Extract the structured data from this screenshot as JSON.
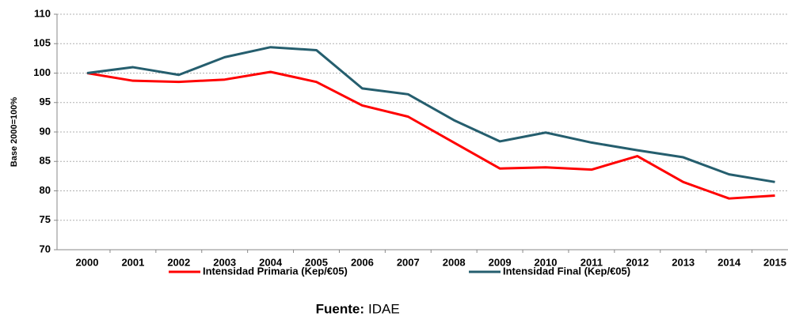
{
  "chart_data": {
    "type": "line",
    "y_label": "Base 2000=100%",
    "categories": [
      "2000",
      "2001",
      "2002",
      "2003",
      "2004",
      "2005",
      "2006",
      "2007",
      "2008",
      "2009",
      "2010",
      "2011",
      "2012",
      "2013",
      "2014",
      "2015"
    ],
    "series": [
      {
        "name": "Intensidad Primaria (Kep/€05)",
        "color": "#ff0000",
        "values": [
          100,
          98.7,
          98.5,
          98.9,
          100.2,
          98.5,
          94.5,
          92.6,
          88.2,
          83.8,
          84.0,
          83.6,
          85.9,
          81.5,
          78.7,
          79.2
        ]
      },
      {
        "name": "Intensidad Final (Kep/€05)",
        "color": "#255e6e",
        "values": [
          100,
          101.0,
          99.7,
          102.7,
          104.4,
          103.9,
          97.4,
          96.4,
          92.0,
          88.4,
          89.9,
          88.2,
          86.9,
          85.7,
          82.8,
          81.5
        ]
      }
    ],
    "ylim": [
      70,
      110
    ],
    "yticks": [
      70,
      75,
      80,
      85,
      90,
      95,
      100,
      105,
      110
    ],
    "grid": true,
    "legend": "bottom",
    "source_label": "Fuente:",
    "source": "IDAE"
  }
}
